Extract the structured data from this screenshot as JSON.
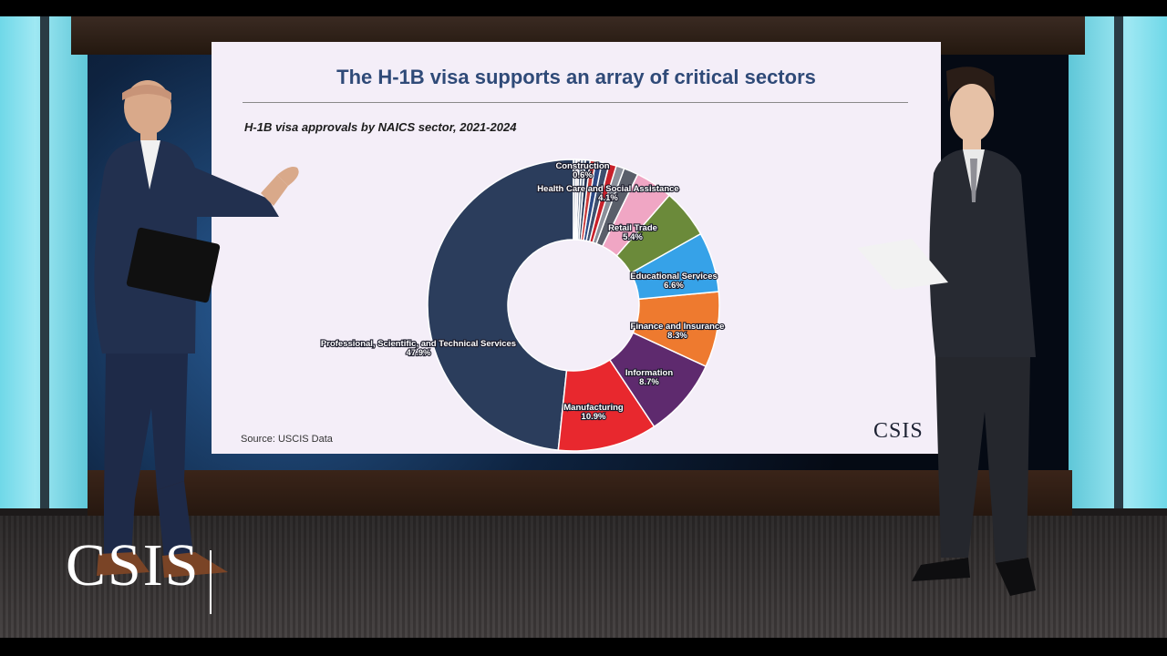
{
  "slide": {
    "title": "The H-1B visa supports an array of critical sectors",
    "subtitle": "H-1B visa approvals by NAICS sector, 2021-2024",
    "source": "Source: USCIS Data",
    "logo": "CSIS"
  },
  "overlay": {
    "logo": "CSIS"
  },
  "chart_data": {
    "type": "pie",
    "donut": true,
    "title": "H-1B visa approvals by NAICS sector, 2021-2024",
    "slices": [
      {
        "label": "Professional, Scientific, and Technical Services",
        "value_text": "47.9%",
        "value": 47.9,
        "color": "#2b3d5c"
      },
      {
        "label": "Manufacturing",
        "value_text": "10.9%",
        "value": 10.9,
        "color": "#e8282e"
      },
      {
        "label": "Information",
        "value_text": "8.7%",
        "value": 8.7,
        "color": "#5e2a6e"
      },
      {
        "label": "Finance and Insurance",
        "value_text": "8.3%",
        "value": 8.3,
        "color": "#ee7a2f"
      },
      {
        "label": "Educational Services",
        "value_text": "6.6%",
        "value": 6.6,
        "color": "#36a2e8"
      },
      {
        "label": "Retail Trade",
        "value_text": "5.4%",
        "value": 5.4,
        "color": "#6b8a3a"
      },
      {
        "label": "Health Care and Social Assistance",
        "value_text": "4.1%",
        "value": 4.1,
        "color": "#f0a6c4"
      },
      {
        "label": "",
        "value_text": "",
        "value": 1.6,
        "color": "#5a5f6a"
      },
      {
        "label": "",
        "value_text": "",
        "value": 0.9,
        "color": "#8a8f99"
      },
      {
        "label": "",
        "value_text": "",
        "value": 0.8,
        "color": "#c8202a"
      },
      {
        "label": "",
        "value_text": "",
        "value": 0.8,
        "color": "#3e4f6e"
      },
      {
        "label": "",
        "value_text": "",
        "value": 0.7,
        "color": "#2d4a86"
      },
      {
        "label": "Construction",
        "value_text": "0.6%",
        "value": 0.6,
        "color": "#c93a3a"
      },
      {
        "label": "",
        "value_text": "",
        "value": 0.5,
        "color": "#223355"
      },
      {
        "label": "",
        "value_text": "",
        "value": 0.4,
        "color": "#7a8aa0"
      },
      {
        "label": "",
        "value_text": "",
        "value": 0.3,
        "color": "#4a5a78"
      },
      {
        "label": "",
        "value_text": "",
        "value": 0.3,
        "color": "#d9d3e0"
      },
      {
        "label": "",
        "value_text": "",
        "value": 0.3,
        "color": "#a0a8b8"
      }
    ]
  }
}
